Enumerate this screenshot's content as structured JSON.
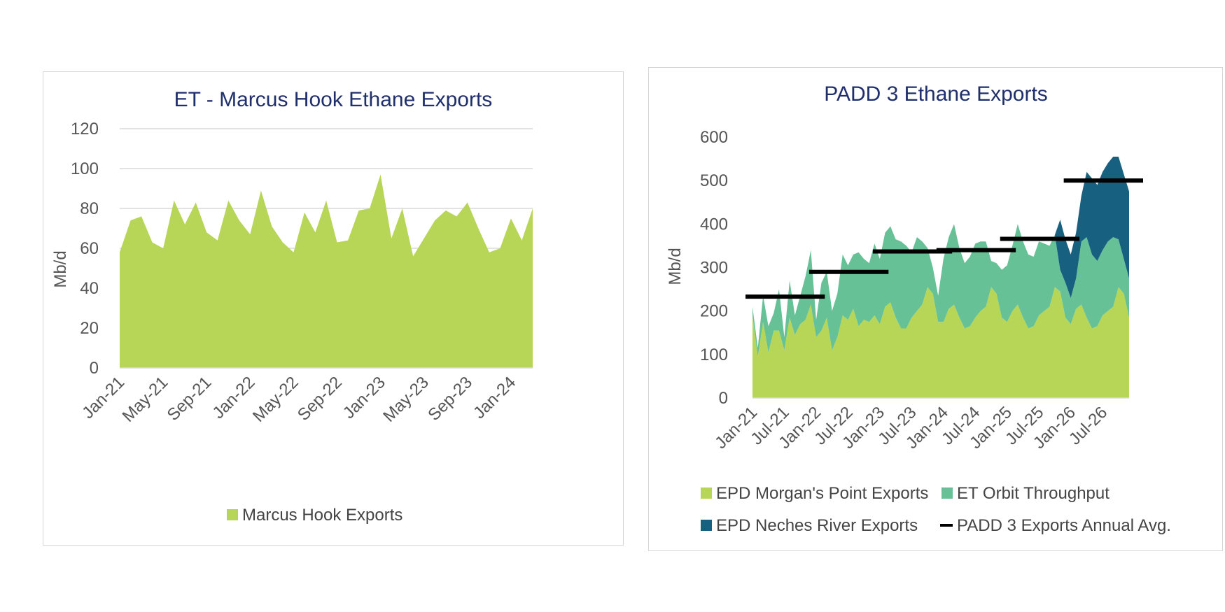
{
  "colors": {
    "title": "#1f2f6b",
    "grid": "#d9d9d9",
    "tick": "#555555",
    "morgans_point": "#b7d657",
    "orbit": "#66c196",
    "neches": "#17607f",
    "avg_line": "#000000",
    "marcus_hook": "#b7d657"
  },
  "chart_data": [
    {
      "type": "area",
      "title": "ET - Marcus Hook Ethane Exports",
      "ylabel": "Mb/d",
      "xlabel": "",
      "ylim": [
        0,
        120
      ],
      "y_ticks": [
        0,
        20,
        40,
        60,
        80,
        100,
        120
      ],
      "grid": true,
      "legend": "bottom",
      "x": [
        "Jan-21",
        "Feb-21",
        "Mar-21",
        "Apr-21",
        "May-21",
        "Jun-21",
        "Jul-21",
        "Aug-21",
        "Sep-21",
        "Oct-21",
        "Nov-21",
        "Dec-21",
        "Jan-22",
        "Feb-22",
        "Mar-22",
        "Apr-22",
        "May-22",
        "Jun-22",
        "Jul-22",
        "Aug-22",
        "Sep-22",
        "Oct-22",
        "Nov-22",
        "Dec-22",
        "Jan-23",
        "Feb-23",
        "Mar-23",
        "Apr-23",
        "May-23",
        "Jun-23",
        "Jul-23",
        "Aug-23",
        "Sep-23",
        "Oct-23",
        "Nov-23",
        "Dec-23",
        "Jan-24",
        "Feb-24",
        "Mar-24"
      ],
      "x_tick_labels": [
        "Jan-21",
        "May-21",
        "Sep-21",
        "Jan-22",
        "May-22",
        "Sep-22",
        "Jan-23",
        "May-23",
        "Sep-23",
        "Jan-24"
      ],
      "series": [
        {
          "name": "Marcus Hook Exports",
          "color": "#b7d657",
          "values": [
            58,
            74,
            76,
            63,
            60,
            84,
            72,
            83,
            68,
            64,
            84,
            74,
            67,
            89,
            71,
            63,
            58,
            78,
            68,
            84,
            63,
            64,
            79,
            80,
            97,
            65,
            80,
            56,
            65,
            74,
            79,
            76,
            83,
            70,
            58,
            60,
            75,
            64,
            80
          ]
        }
      ],
      "legend_entries": [
        "Marcus Hook Exports"
      ]
    },
    {
      "type": "area",
      "title": "PADD 3 Ethane Exports",
      "ylabel": "Mb/d",
      "xlabel": "",
      "ylim": [
        0,
        600
      ],
      "y_ticks": [
        0,
        100,
        200,
        300,
        400,
        500,
        600
      ],
      "grid": false,
      "legend": "bottom",
      "x_tick_labels": [
        "Jan-21",
        "Jul-21",
        "Jan-22",
        "Jul-22",
        "Jan-23",
        "Jul-23",
        "Jan-24",
        "Jul-24",
        "Jan-25",
        "Jul-25",
        "Jan-26",
        "Jul-26"
      ],
      "x_months": 72,
      "series": [
        {
          "name": "EPD Morgan's Point Exports",
          "color": "#b7d657",
          "values": [
            190,
            95,
            175,
            105,
            155,
            155,
            110,
            185,
            145,
            170,
            180,
            215,
            140,
            155,
            185,
            110,
            140,
            190,
            180,
            205,
            165,
            180,
            175,
            190,
            170,
            210,
            220,
            185,
            160,
            160,
            185,
            200,
            215,
            255,
            240,
            175,
            175,
            205,
            215,
            185,
            160,
            165,
            185,
            200,
            210,
            255,
            240,
            185,
            175,
            200,
            215,
            185,
            160,
            165,
            190,
            200,
            210,
            255,
            245,
            185,
            170,
            205,
            215,
            185,
            160,
            165,
            190,
            200,
            210,
            255,
            240,
            185
          ]
        },
        {
          "name": "ET Orbit Throughput",
          "color": "#66c196",
          "values": [
            20,
            20,
            60,
            60,
            40,
            95,
            30,
            85,
            45,
            65,
            100,
            125,
            40,
            110,
            105,
            90,
            100,
            140,
            125,
            125,
            170,
            140,
            135,
            165,
            150,
            170,
            175,
            180,
            200,
            190,
            150,
            170,
            145,
            90,
            60,
            60,
            145,
            165,
            185,
            160,
            150,
            160,
            170,
            160,
            150,
            60,
            70,
            110,
            130,
            150,
            185,
            175,
            170,
            160,
            170,
            155,
            140,
            120,
            50,
            80,
            60,
            70,
            145,
            185,
            170,
            150,
            150,
            160,
            160,
            110,
            80,
            90
          ]
        },
        {
          "name": "EPD Neches River Exports",
          "color": "#17607f",
          "values": [
            0,
            0,
            0,
            0,
            0,
            0,
            0,
            0,
            0,
            0,
            0,
            0,
            0,
            0,
            0,
            0,
            0,
            0,
            0,
            0,
            0,
            0,
            0,
            0,
            0,
            0,
            0,
            0,
            0,
            0,
            0,
            0,
            0,
            0,
            0,
            0,
            0,
            0,
            0,
            0,
            0,
            0,
            0,
            0,
            0,
            0,
            0,
            0,
            0,
            0,
            0,
            0,
            0,
            0,
            0,
            0,
            0,
            0,
            115,
            100,
            100,
            105,
            105,
            150,
            175,
            175,
            180,
            180,
            185,
            190,
            195,
            200
          ]
        },
        {
          "name": "PADD 3 Exports Annual Avg.",
          "color": "#000000",
          "style": "line",
          "values": [
            {
              "year": "2021",
              "value": 233
            },
            {
              "year": "2022",
              "value": 290
            },
            {
              "year": "2023",
              "value": 337
            },
            {
              "year": "2024",
              "value": 340
            },
            {
              "year": "2025",
              "value": 366
            },
            {
              "year": "2026",
              "value": 500
            }
          ]
        }
      ],
      "legend_entries": [
        "EPD Morgan's Point Exports",
        "ET Orbit Throughput",
        "EPD Neches River Exports",
        "PADD 3 Exports Annual Avg."
      ]
    }
  ]
}
